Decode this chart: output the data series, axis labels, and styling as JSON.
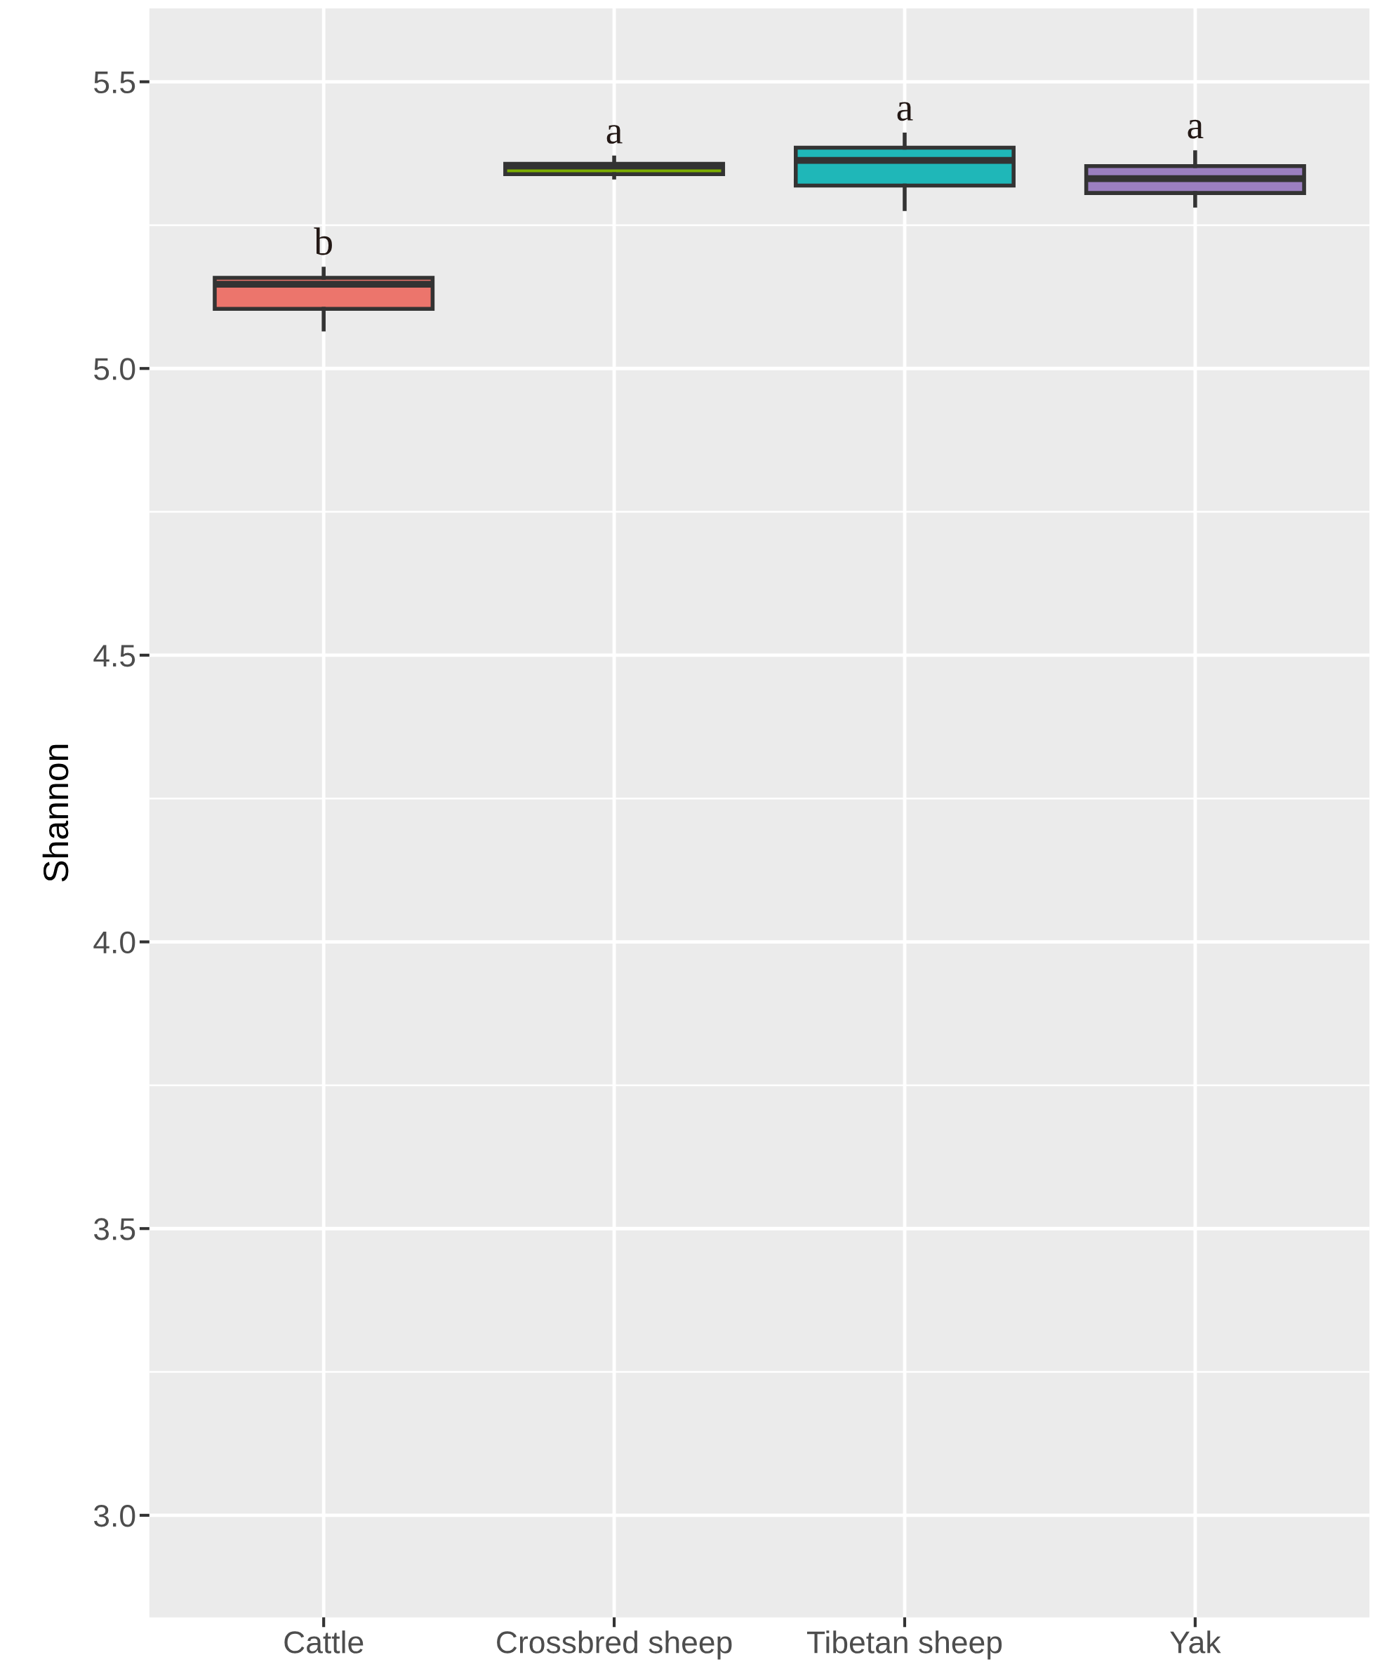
{
  "chart_data": {
    "type": "box",
    "ylabel": "Shannon",
    "categories": [
      "Cattle",
      "Crossbred sheep",
      "Tibetan sheep",
      "Yak"
    ],
    "colors": [
      "#ec756c",
      "#7cae00",
      "#1fb7b8",
      "#9b7fc0"
    ],
    "boxes": [
      {
        "low": 5.068,
        "q1": 5.104,
        "median": 5.147,
        "q3": 5.158,
        "high": 5.174
      },
      {
        "low": 5.333,
        "q1": 5.339,
        "median": 5.353,
        "q3": 5.357,
        "high": 5.368
      },
      {
        "low": 5.278,
        "q1": 5.319,
        "median": 5.363,
        "q3": 5.385,
        "high": 5.408
      },
      {
        "low": 5.284,
        "q1": 5.306,
        "median": 5.331,
        "q3": 5.353,
        "high": 5.377
      }
    ],
    "ylim": [
      2.822,
      5.628
    ],
    "yticks": [
      {
        "value": 3,
        "label": "3.0"
      },
      3.5,
      {
        "value": 4,
        "label": "4.0"
      },
      4.5,
      {
        "value": 5,
        "label": "5.0"
      },
      5.5
    ],
    "grid": true,
    "legend": false,
    "annotations": [
      "b",
      "a",
      "a",
      "a"
    ]
  }
}
